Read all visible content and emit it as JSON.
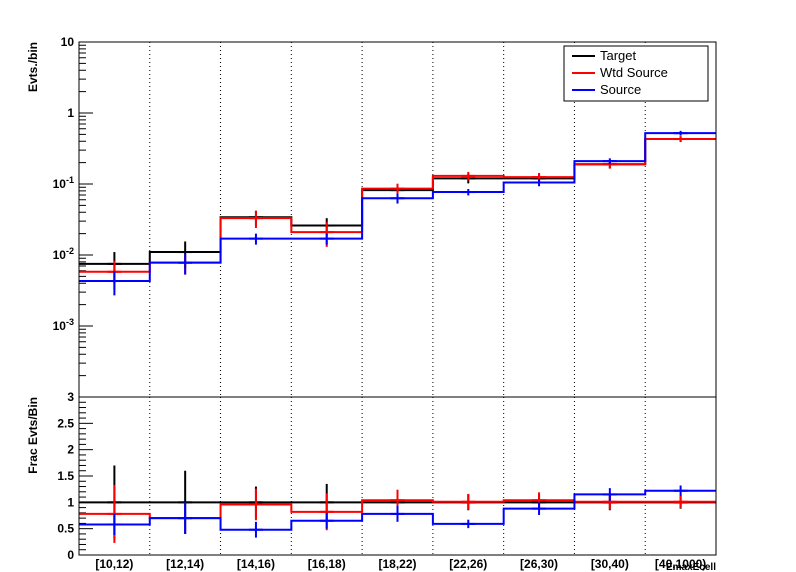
{
  "chart_data": [
    {
      "type": "line",
      "panel": "top",
      "ylabel": "Evts./bin",
      "yscale": "log",
      "ylim": [
        0.0001,
        10
      ],
      "grid": "vertical-dotted",
      "legend_position": "top-right",
      "categories": [
        "[10,12)",
        "[12,14)",
        "[14,16)",
        "[16,18)",
        "[18,22)",
        "[22,26)",
        "[26,30)",
        "[30,40)",
        "[40,1000)"
      ],
      "y_tick_labels": [
        "10",
        "1",
        "10^-1",
        "10^-2",
        "10^-3"
      ],
      "series": [
        {
          "name": "Target",
          "color": "#000000",
          "values": [
            0.0075,
            0.011,
            0.034,
            0.026,
            0.082,
            0.12,
            0.12,
            0.19,
            0.43
          ],
          "errors": [
            0.0035,
            0.0045,
            0.008,
            0.007,
            0.015,
            0.018,
            0.018,
            0.025,
            0.04
          ]
        },
        {
          "name": "Wtd Source",
          "color": "#ff0000",
          "values": [
            0.0058,
            0.0078,
            0.033,
            0.021,
            0.086,
            0.13,
            0.125,
            0.19,
            0.43
          ],
          "errors": [
            0.0025,
            0.0025,
            0.009,
            0.008,
            0.015,
            0.018,
            0.018,
            0.025,
            0.04
          ]
        },
        {
          "name": "Source",
          "color": "#0000ff",
          "values": [
            0.0043,
            0.0078,
            0.017,
            0.017,
            0.063,
            0.077,
            0.105,
            0.21,
            0.52
          ],
          "errors": [
            0.0016,
            0.0025,
            0.003,
            0.003,
            0.01,
            0.008,
            0.012,
            0.02,
            0.04
          ]
        }
      ]
    },
    {
      "type": "line",
      "panel": "bottom",
      "ylabel": "Frac Evts/Bin",
      "ylim": [
        0,
        3
      ],
      "y_ticks": [
        "0",
        "0.5",
        "1",
        "1.5",
        "2",
        "2.5",
        "3"
      ],
      "grid": "vertical-dotted",
      "categories": [
        "[10,12)",
        "[12,14)",
        "[14,16)",
        "[16,18)",
        "[18,22)",
        "[22,26)",
        "[26,30)",
        "[30,40)",
        "[40,1000)"
      ],
      "xlabel": "EmaxEcell",
      "series": [
        {
          "name": "Target",
          "color": "#000000",
          "values": [
            1,
            1,
            1,
            1,
            1,
            1,
            1,
            1,
            1
          ],
          "errors": [
            0.7,
            0.6,
            0.3,
            0.35,
            0.2,
            0.15,
            0.15,
            0.15,
            0.12
          ]
        },
        {
          "name": "Wtd Source",
          "color": "#ff0000",
          "values": [
            0.78,
            0.7,
            0.96,
            0.82,
            1.04,
            1.01,
            1.04,
            1.01,
            1.01
          ],
          "errors": [
            0.55,
            0.0,
            0.3,
            0.35,
            0.2,
            0.15,
            0.15,
            0.15,
            0.12
          ]
        },
        {
          "name": "Source",
          "color": "#0000ff",
          "values": [
            0.58,
            0.7,
            0.48,
            0.65,
            0.78,
            0.59,
            0.88,
            1.15,
            1.22
          ],
          "errors": [
            0.2,
            0.3,
            0.15,
            0.15,
            0.15,
            0.08,
            0.12,
            0.12,
            0.1
          ]
        }
      ]
    }
  ],
  "legend": {
    "items": [
      {
        "label": "Target",
        "color": "#000000"
      },
      {
        "label": "Wtd Source",
        "color": "#ff0000"
      },
      {
        "label": "Source",
        "color": "#0000ff"
      }
    ]
  }
}
